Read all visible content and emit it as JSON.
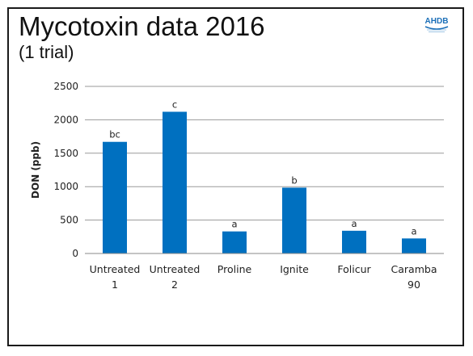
{
  "slide": {
    "title": "Mycotoxin data 2016",
    "subtitle": "(1 trial)",
    "logo_text": "AHDB"
  },
  "chart_data": {
    "type": "bar",
    "categories": [
      [
        "Untreated",
        "1"
      ],
      [
        "Untreated",
        "2"
      ],
      [
        "Proline"
      ],
      [
        "Ignite"
      ],
      [
        "Folicur"
      ],
      [
        "Caramba",
        "90"
      ]
    ],
    "values": [
      1670,
      2120,
      330,
      985,
      340,
      225
    ],
    "data_labels": [
      "bc",
      "c",
      "a",
      "b",
      "a",
      "a"
    ],
    "title": "",
    "xlabel": "",
    "ylabel": "DON (ppb)",
    "ylim": [
      0,
      2500
    ],
    "yticks": [
      0,
      500,
      1000,
      1500,
      2000,
      2500
    ],
    "grid": true,
    "legend": "none",
    "bar_color": "#0070c0",
    "grid_color": "#9a9a9a"
  }
}
